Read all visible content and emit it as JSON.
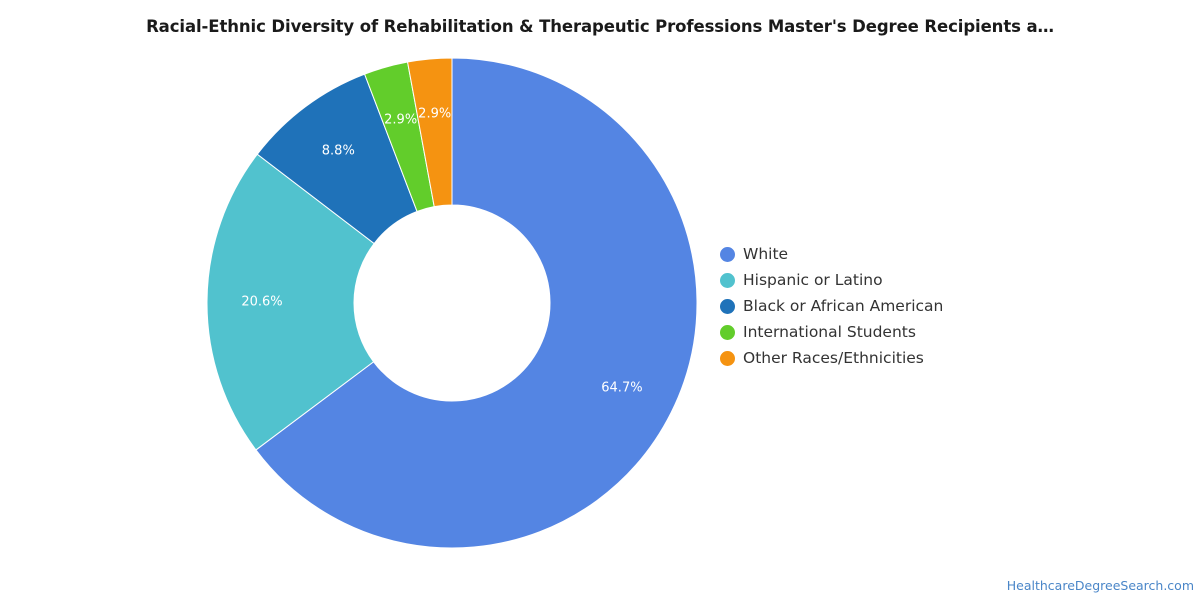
{
  "title": "Racial-Ethnic Diversity of Rehabilitation & Therapeutic Professions Master's Degree Recipients a…",
  "source": "HealthcareDegreeSearch.com",
  "chart_data": {
    "type": "pie",
    "style": "donut",
    "title": "Racial-Ethnic Diversity of Rehabilitation & Therapeutic Professions Master's Degree Recipients a…",
    "legend_position": "right",
    "slices": [
      {
        "name": "White",
        "value": 64.7,
        "label": "64.7%",
        "color": "#5485e3"
      },
      {
        "name": "Hispanic or Latino",
        "value": 20.6,
        "label": "20.6%",
        "color": "#51c2ce"
      },
      {
        "name": "Black or African American",
        "value": 8.8,
        "label": "8.8%",
        "color": "#1f72b9"
      },
      {
        "name": "International Students",
        "value": 2.9,
        "label": "2.9%",
        "color": "#62cd2b"
      },
      {
        "name": "Other Races/Ethnicities",
        "value": 2.9,
        "label": "2.9%",
        "color": "#f59311"
      }
    ]
  }
}
